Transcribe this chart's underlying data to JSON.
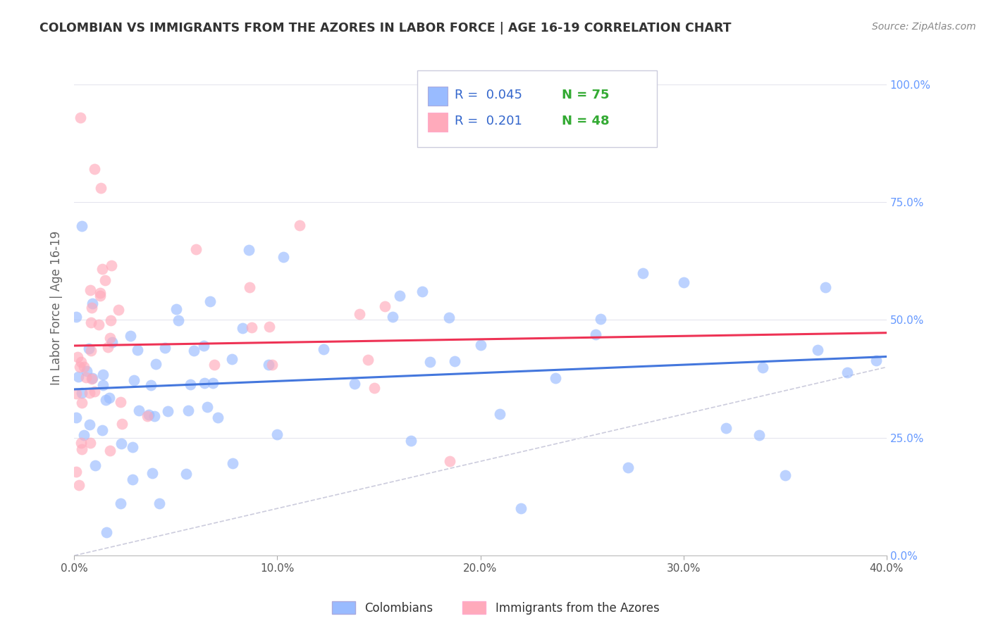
{
  "title": "COLOMBIAN VS IMMIGRANTS FROM THE AZORES IN LABOR FORCE | AGE 16-19 CORRELATION CHART",
  "source": "Source: ZipAtlas.com",
  "ylabel": "In Labor Force | Age 16-19",
  "xmin": 0.0,
  "xmax": 0.4,
  "ymin": 0.0,
  "ymax": 1.05,
  "yticks": [
    0.0,
    0.25,
    0.5,
    0.75,
    1.0
  ],
  "ytick_labels": [
    "0.0%",
    "25.0%",
    "50.0%",
    "75.0%",
    "100.0%"
  ],
  "xticks": [
    0.0,
    0.1,
    0.2,
    0.3,
    0.4
  ],
  "xtick_labels": [
    "0.0%",
    "10.0%",
    "20.0%",
    "30.0%",
    "40.0%"
  ],
  "blue_color": "#99bbff",
  "pink_color": "#ffaabb",
  "blue_line_color": "#4477dd",
  "pink_line_color": "#ee3355",
  "ref_line_color": "#ccccdd",
  "legend_R_blue": "0.045",
  "legend_N_blue": "75",
  "legend_R_pink": "0.201",
  "legend_N_pink": "48",
  "legend_label_blue": "Colombians",
  "legend_label_pink": "Immigrants from the Azores",
  "background_color": "#ffffff",
  "grid_color": "#e5e5ee",
  "title_color": "#333333",
  "tick_color": "#6699ff",
  "R_color": "#3366cc",
  "N_color": "#33aa33"
}
